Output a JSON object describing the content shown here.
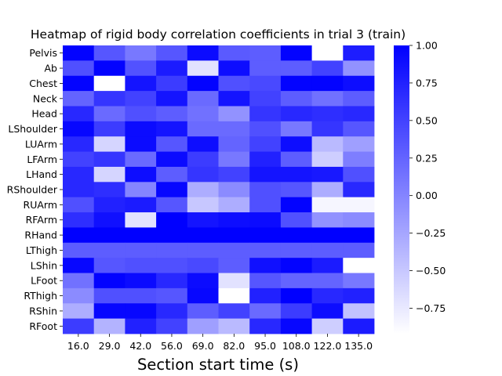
{
  "chart_data": {
    "type": "heatmap",
    "title": "Heatmap of rigid body correlation coefficients in trial 3 (train)",
    "xlabel": "Section start time (s)",
    "ylabel": "",
    "x": [
      "16.0",
      "29.0",
      "42.0",
      "56.0",
      "69.0",
      "82.0",
      "95.0",
      "108.0",
      "122.0",
      "135.0"
    ],
    "y": [
      "Pelvis",
      "Ab",
      "Chest",
      "Neck",
      "Head",
      "LShoulder",
      "LUArm",
      "LFArm",
      "LHand",
      "RShoulder",
      "RUArm",
      "RFArm",
      "RHand",
      "LThigh",
      "LShin",
      "LFoot",
      "RThigh",
      "RShin",
      "RFoot"
    ],
    "values": [
      [
        0.98,
        0.35,
        0.1,
        0.35,
        0.92,
        0.32,
        0.3,
        0.98,
        -0.95,
        0.78
      ],
      [
        0.4,
        0.98,
        0.38,
        0.8,
        -0.7,
        0.9,
        0.3,
        0.3,
        0.5,
        -0.1
      ],
      [
        0.98,
        -1.0,
        0.85,
        0.55,
        0.98,
        0.4,
        0.45,
        0.98,
        0.98,
        0.9
      ],
      [
        0.25,
        0.6,
        0.5,
        0.85,
        0.2,
        0.85,
        0.5,
        0.3,
        0.15,
        0.3
      ],
      [
        0.7,
        0.2,
        0.4,
        0.3,
        0.15,
        -0.1,
        0.6,
        0.7,
        0.65,
        0.7
      ],
      [
        0.95,
        0.55,
        0.92,
        0.85,
        0.2,
        0.2,
        0.4,
        0.1,
        0.6,
        0.35
      ],
      [
        0.7,
        -0.6,
        0.92,
        0.35,
        0.9,
        0.25,
        0.5,
        0.9,
        -0.4,
        -0.2
      ],
      [
        0.5,
        0.6,
        0.2,
        0.92,
        0.55,
        0.1,
        0.75,
        0.3,
        -0.55,
        0.05
      ],
      [
        0.7,
        -0.6,
        0.9,
        0.3,
        0.6,
        0.5,
        0.85,
        0.85,
        0.82,
        0.4
      ],
      [
        0.7,
        0.65,
        0.0,
        0.95,
        -0.3,
        -0.05,
        0.4,
        0.35,
        -0.3,
        0.7
      ],
      [
        0.4,
        0.75,
        0.8,
        0.35,
        -0.5,
        -0.3,
        0.4,
        0.98,
        -0.85,
        -0.85
      ],
      [
        0.65,
        0.88,
        -0.7,
        1.0,
        0.85,
        0.9,
        0.92,
        0.4,
        -0.1,
        -0.05
      ],
      [
        1.0,
        1.0,
        1.0,
        1.0,
        1.0,
        1.0,
        1.0,
        1.0,
        1.0,
        1.0
      ],
      [
        0.3,
        0.3,
        0.3,
        0.3,
        0.3,
        0.3,
        0.3,
        0.3,
        0.3,
        0.3
      ],
      [
        0.95,
        0.35,
        0.4,
        0.4,
        0.45,
        0.3,
        0.88,
        0.98,
        0.8,
        -1.0
      ],
      [
        0.15,
        0.98,
        0.92,
        0.7,
        0.92,
        -0.7,
        0.35,
        0.25,
        0.25,
        0.1
      ],
      [
        -0.05,
        0.4,
        0.4,
        0.35,
        0.95,
        -0.92,
        0.75,
        1.0,
        0.7,
        0.75
      ],
      [
        -0.3,
        0.95,
        0.95,
        0.7,
        0.3,
        0.5,
        0.2,
        0.55,
        0.9,
        -0.45
      ],
      [
        0.55,
        -0.35,
        0.75,
        0.5,
        -0.2,
        -0.4,
        0.7,
        0.95,
        -0.55,
        0.8
      ]
    ],
    "colorbar": {
      "ticks": [
        "1.00",
        "0.75",
        "0.50",
        "0.25",
        "0.00",
        "−0.25",
        "−0.50",
        "−0.75"
      ],
      "tick_values": [
        1.0,
        0.75,
        0.5,
        0.25,
        0.0,
        -0.25,
        -0.5,
        -0.75
      ],
      "vmin": -0.92,
      "vmax": 1.0,
      "color_low": "#ffffff",
      "color_high": "#0000ff"
    },
    "grid": false,
    "legend": "colorbar-right"
  }
}
